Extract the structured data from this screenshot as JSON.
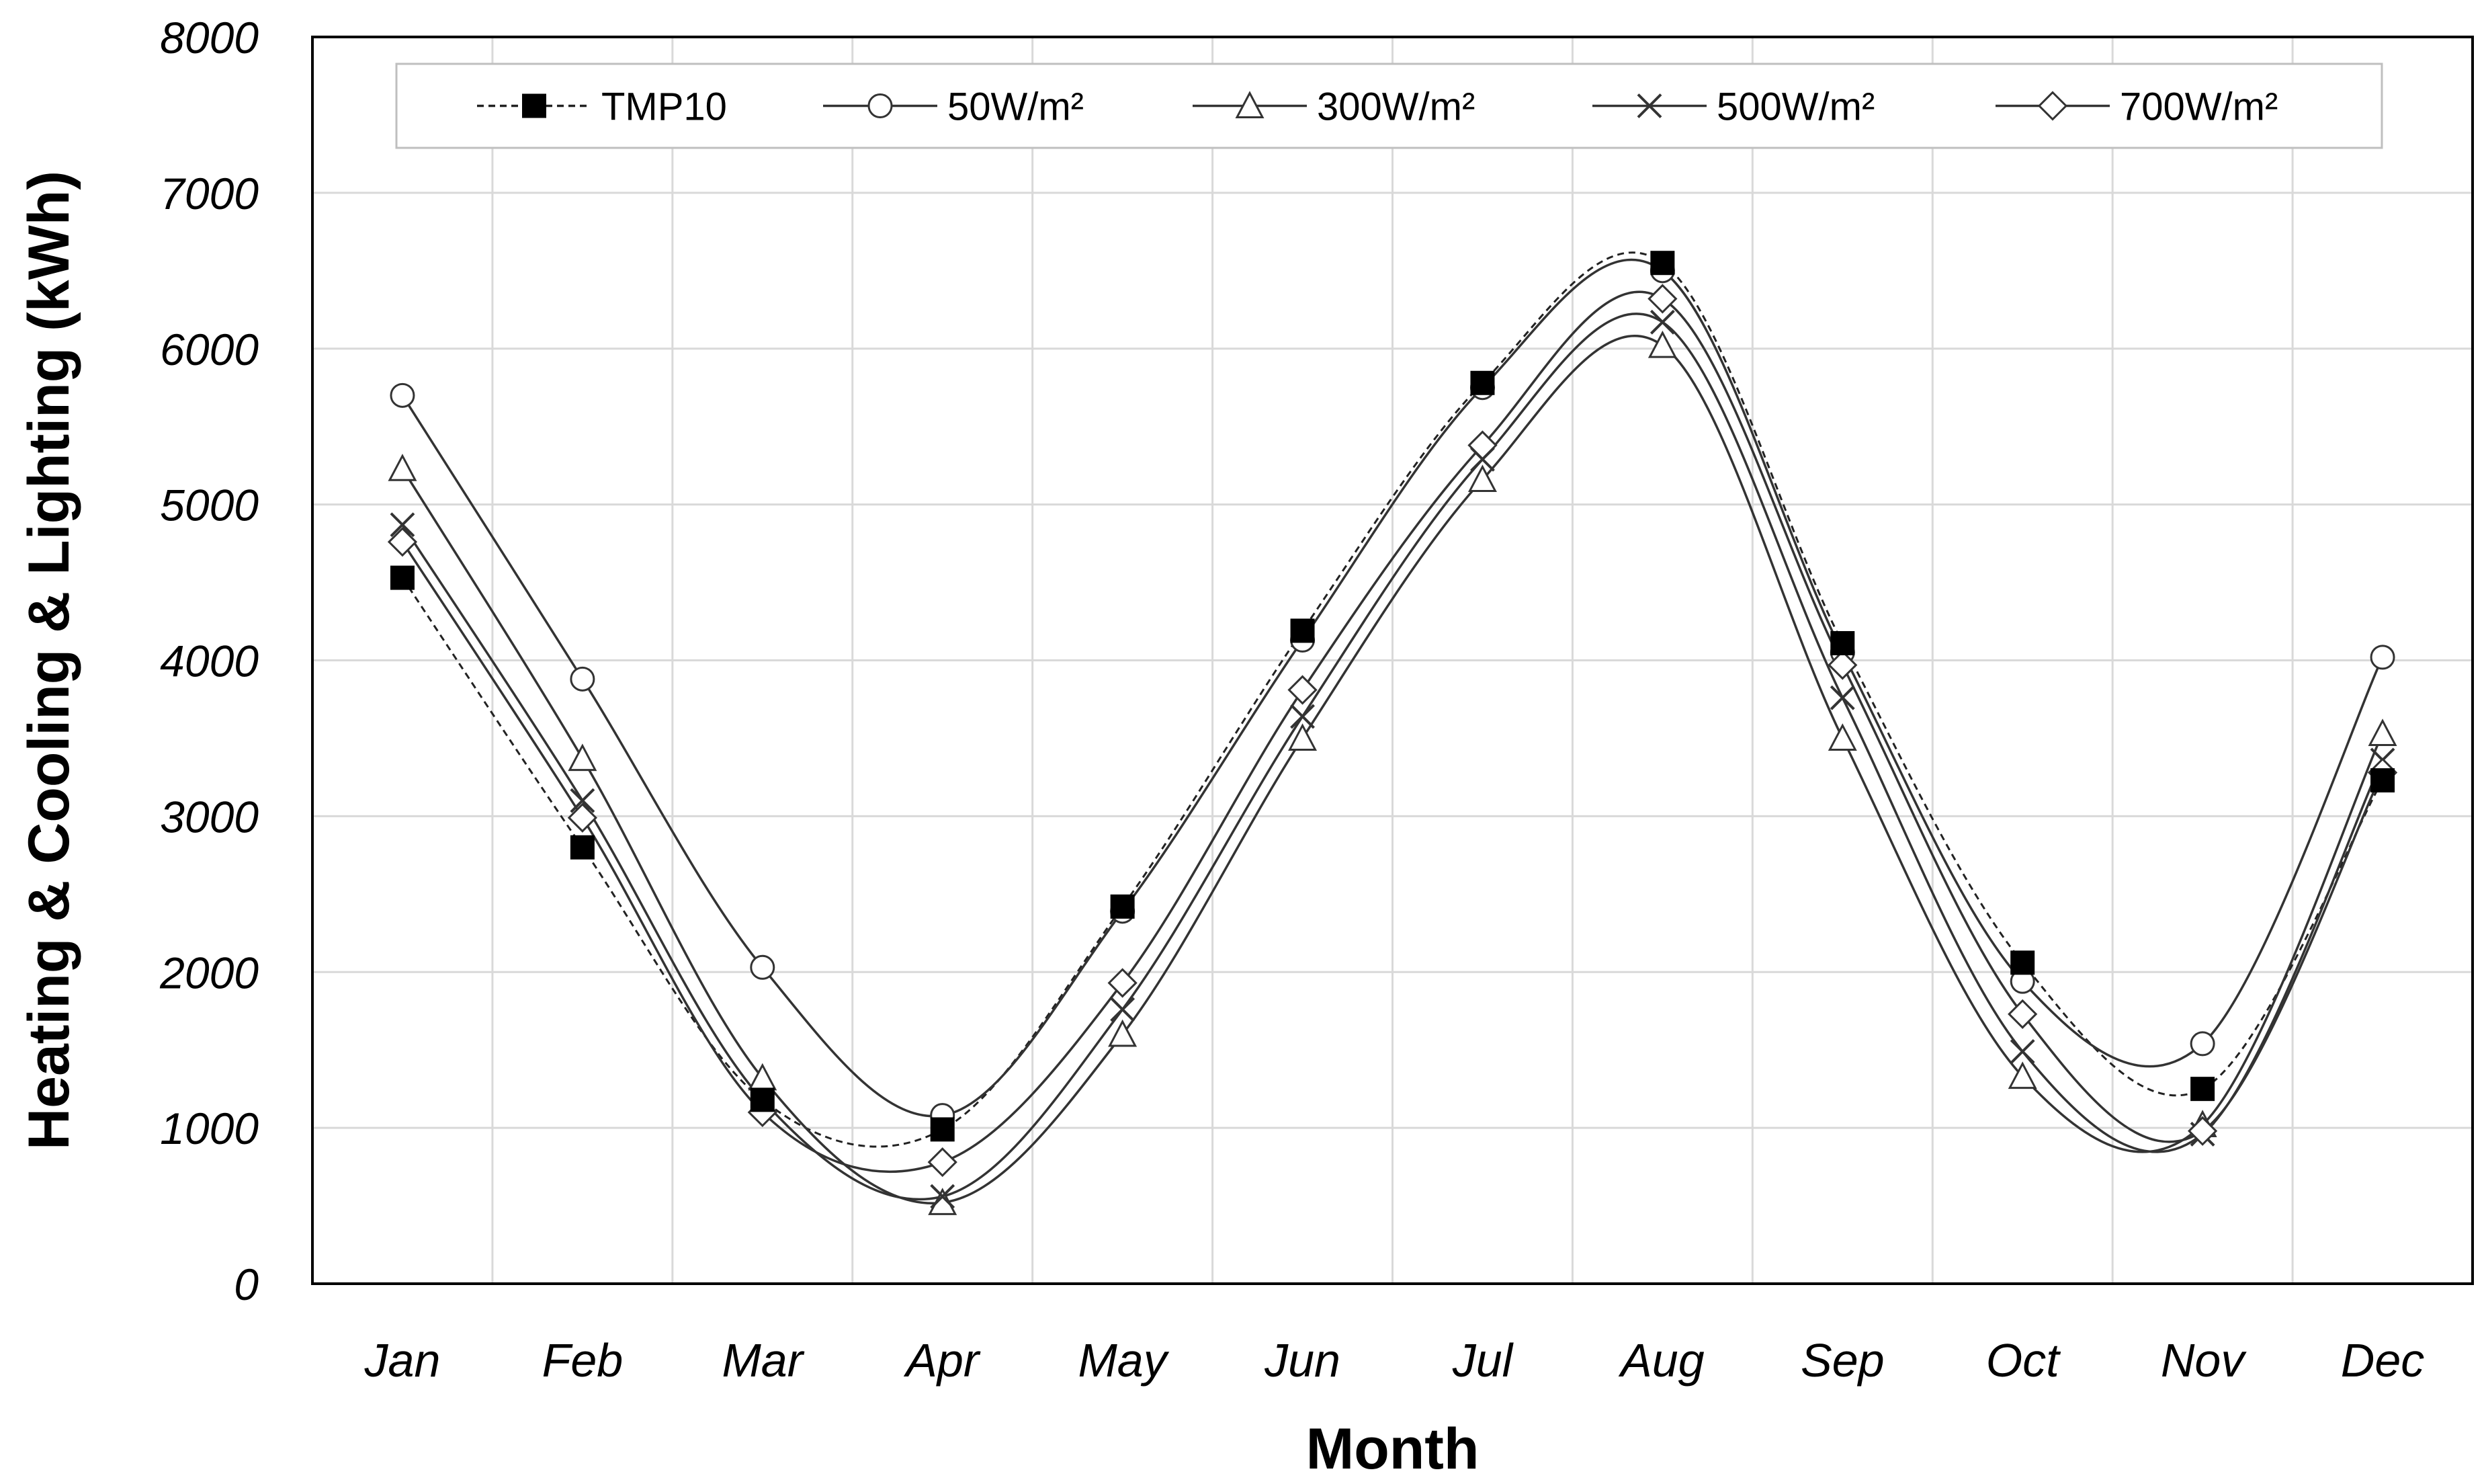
{
  "chart_data": {
    "type": "line",
    "title": "",
    "xlabel": "Month",
    "ylabel": "Heating & Cooling & Lighting (kWh)",
    "categories": [
      "Jan",
      "Feb",
      "Mar",
      "Apr",
      "May",
      "Jun",
      "Jul",
      "Aug",
      "Sep",
      "Oct",
      "Nov",
      "Dec"
    ],
    "ylim": [
      0,
      8000
    ],
    "yticks": [
      "0",
      "1000",
      "2000",
      "3000",
      "4000",
      "5000",
      "6000",
      "7000",
      "8000"
    ],
    "grid": true,
    "legend_position": "top",
    "series": [
      {
        "name": "TMP10",
        "marker": "filled-square",
        "line": "dashed",
        "values": [
          4530,
          2800,
          1180,
          990,
          2420,
          4190,
          5780,
          6550,
          4110,
          2060,
          1250,
          3230
        ]
      },
      {
        "name": "50W/m²",
        "marker": "circle",
        "line": "solid",
        "values": [
          5700,
          3880,
          2030,
          1080,
          2390,
          4130,
          5750,
          6500,
          4050,
          1940,
          1540,
          4020
        ]
      },
      {
        "name": "300W/m²",
        "marker": "triangle",
        "line": "solid",
        "values": [
          5230,
          3370,
          1320,
          520,
          1600,
          3500,
          5160,
          6020,
          3500,
          1330,
          1020,
          3530
        ]
      },
      {
        "name": "500W/m²",
        "marker": "x",
        "line": "solid",
        "values": [
          4870,
          3100,
          1180,
          560,
          1760,
          3640,
          5290,
          6170,
          3760,
          1490,
          960,
          3360
        ]
      },
      {
        "name": "700W/m²",
        "marker": "diamond",
        "line": "solid",
        "values": [
          4760,
          2990,
          1100,
          780,
          1930,
          3810,
          5380,
          6320,
          3970,
          1730,
          980,
          3280
        ]
      }
    ]
  }
}
